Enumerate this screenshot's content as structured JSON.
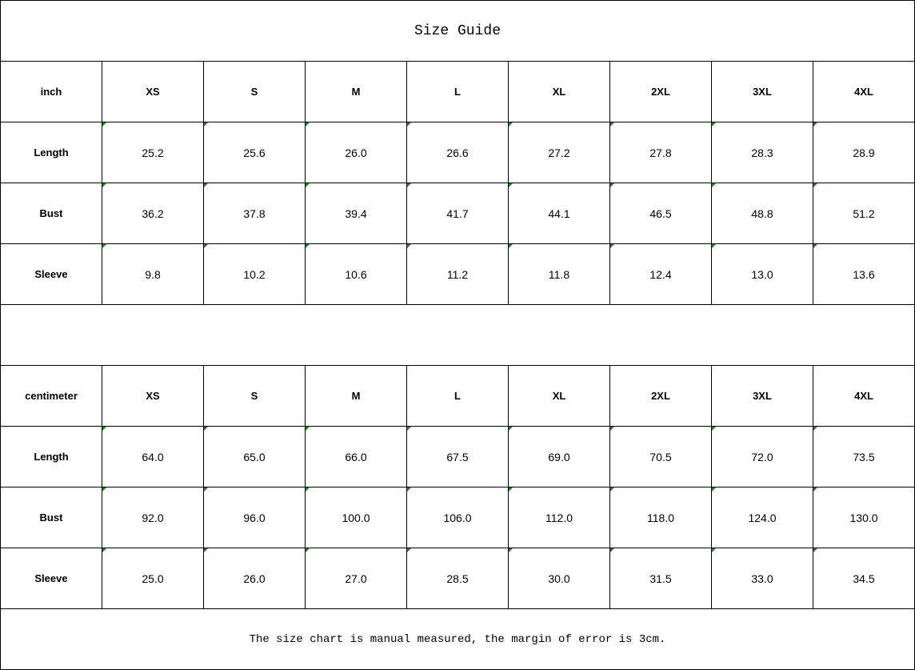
{
  "title": "Size Guide",
  "sizes": [
    "XS",
    "S",
    "M",
    "L",
    "XL",
    "2XL",
    "3XL",
    "4XL"
  ],
  "tables": [
    {
      "unit": "inch",
      "rows": [
        {
          "label": "Length",
          "values": [
            "25.2",
            "25.6",
            "26.0",
            "26.6",
            "27.2",
            "27.8",
            "28.3",
            "28.9"
          ]
        },
        {
          "label": "Bust",
          "values": [
            "36.2",
            "37.8",
            "39.4",
            "41.7",
            "44.1",
            "46.5",
            "48.8",
            "51.2"
          ]
        },
        {
          "label": "Sleeve",
          "values": [
            "9.8",
            "10.2",
            "10.6",
            "11.2",
            "11.8",
            "12.4",
            "13.0",
            "13.6"
          ]
        }
      ]
    },
    {
      "unit": "centimeter",
      "rows": [
        {
          "label": "Length",
          "values": [
            "64.0",
            "65.0",
            "66.0",
            "67.5",
            "69.0",
            "70.5",
            "72.0",
            "73.5"
          ]
        },
        {
          "label": "Bust",
          "values": [
            "92.0",
            "96.0",
            "100.0",
            "106.0",
            "112.0",
            "118.0",
            "124.0",
            "130.0"
          ]
        },
        {
          "label": "Sleeve",
          "values": [
            "25.0",
            "26.0",
            "27.0",
            "28.5",
            "30.0",
            "31.5",
            "33.0",
            "34.5"
          ]
        }
      ]
    }
  ],
  "note": "The size chart is manual measured, the margin of error is 3cm.",
  "colors": {
    "grid": "#000000",
    "error_marker": "#1a7f1a"
  }
}
